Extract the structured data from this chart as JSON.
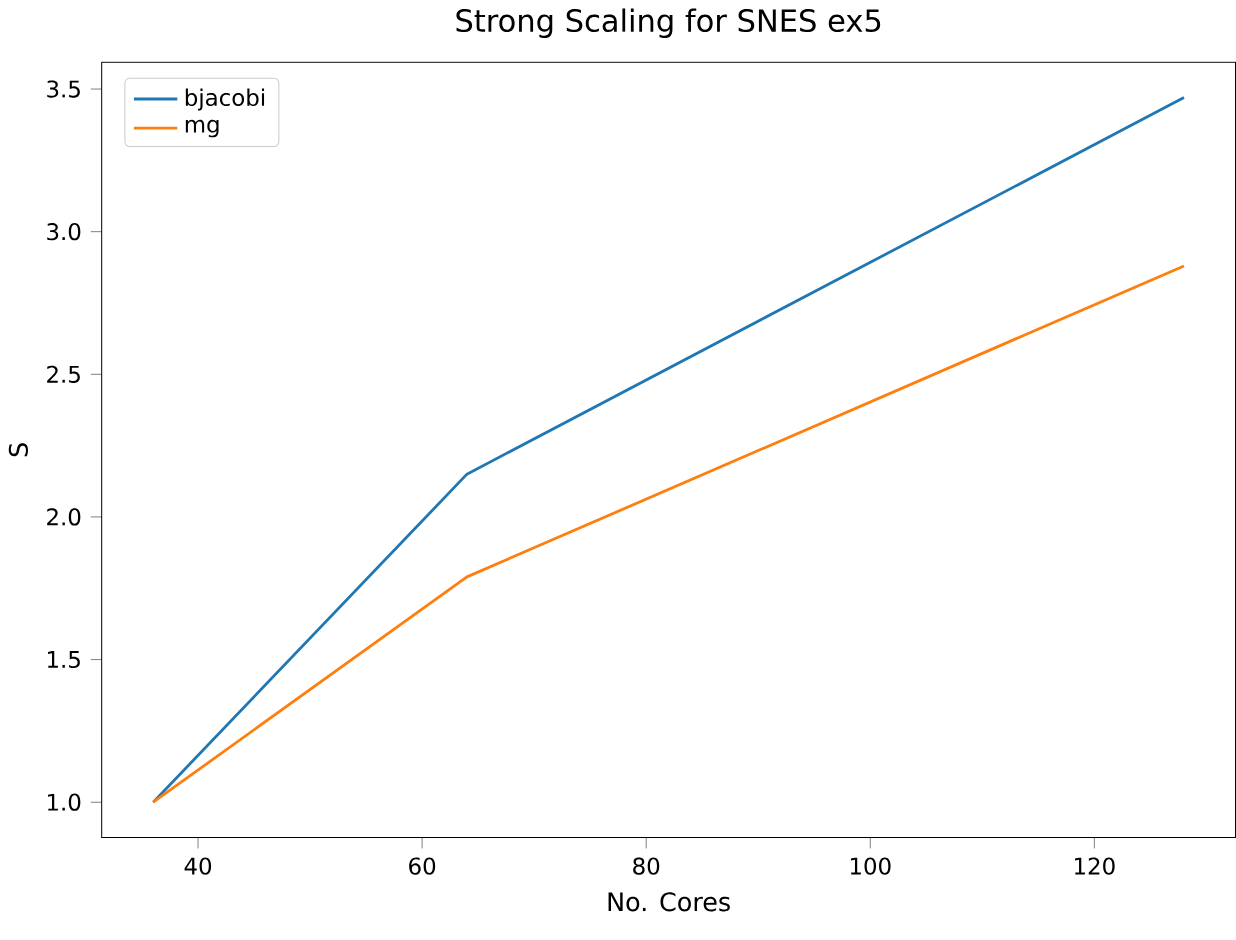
{
  "chart_data": {
    "type": "line",
    "title": "Strong Scaling for SNES ex5",
    "xlabel": "No. Cores",
    "ylabel": "S",
    "x": [
      36,
      64,
      128
    ],
    "series": [
      {
        "name": "bjacobi",
        "color": "#1f77b4",
        "values": [
          1.0,
          2.15,
          3.47
        ]
      },
      {
        "name": "mg",
        "color": "#ff7f0e",
        "values": [
          1.0,
          1.79,
          2.88
        ]
      }
    ],
    "xlim": [
      31.4,
      132.6
    ],
    "ylim": [
      0.876,
      3.594
    ],
    "xticks": [
      40,
      60,
      80,
      100,
      120
    ],
    "yticks": [
      {
        "value": 1,
        "label": "1.0"
      },
      {
        "value": 1.5,
        "label": "1.5"
      },
      {
        "value": 2,
        "label": "2.0"
      },
      {
        "value": 2.5,
        "label": "2.5"
      },
      {
        "value": 3,
        "label": "3.0"
      },
      {
        "value": 3.5,
        "label": "3.5"
      }
    ],
    "legend": "top left",
    "grid": false,
    "marker": "none",
    "line_style": "solid"
  }
}
